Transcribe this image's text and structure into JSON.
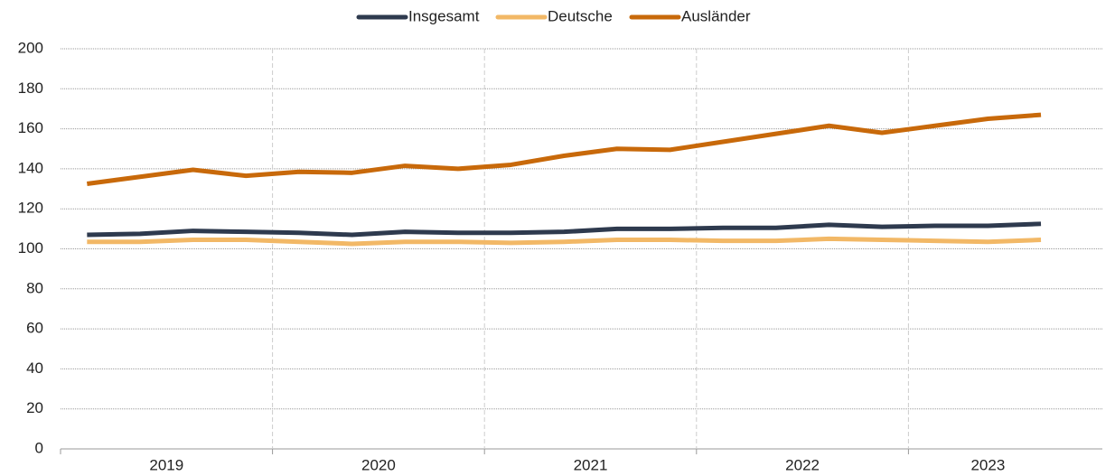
{
  "chart_data": {
    "type": "line",
    "categories": [
      null,
      null,
      null,
      null,
      null,
      null,
      null,
      null,
      null,
      null,
      null,
      null,
      null,
      null,
      null,
      null,
      null,
      null,
      null
    ],
    "x_groups": [
      {
        "label": "2019",
        "count": 4
      },
      {
        "label": "2020",
        "count": 4
      },
      {
        "label": "2021",
        "count": 4
      },
      {
        "label": "2022",
        "count": 4
      },
      {
        "label": "2023",
        "count": 3
      }
    ],
    "series": [
      {
        "name": "Insgesamt",
        "color": "#2e3a4e",
        "values": [
          107,
          107.5,
          109,
          108.5,
          108,
          107,
          108.5,
          108,
          108,
          108.5,
          110,
          110,
          110.5,
          110.5,
          112,
          111,
          111.5,
          111.5,
          112.5
        ]
      },
      {
        "name": "Deutsche",
        "color": "#f2b866",
        "values": [
          103.5,
          103.5,
          104.5,
          104.5,
          103.5,
          102.5,
          103.5,
          103.5,
          103,
          103.5,
          104.5,
          104.5,
          104,
          104,
          105,
          104.5,
          104,
          103.5,
          104.5
        ]
      },
      {
        "name": "Ausländer",
        "color": "#c8690a",
        "values": [
          132.5,
          136,
          139.5,
          136.5,
          138.5,
          138,
          141.5,
          140,
          142,
          146.5,
          150,
          149.5,
          153.5,
          157.5,
          161.5,
          158,
          161.5,
          165,
          167
        ]
      }
    ],
    "ylim": [
      0,
      200
    ],
    "yticks": [
      0,
      20,
      40,
      60,
      80,
      100,
      120,
      140,
      160,
      180,
      200
    ],
    "grid": true,
    "legend": "top"
  }
}
